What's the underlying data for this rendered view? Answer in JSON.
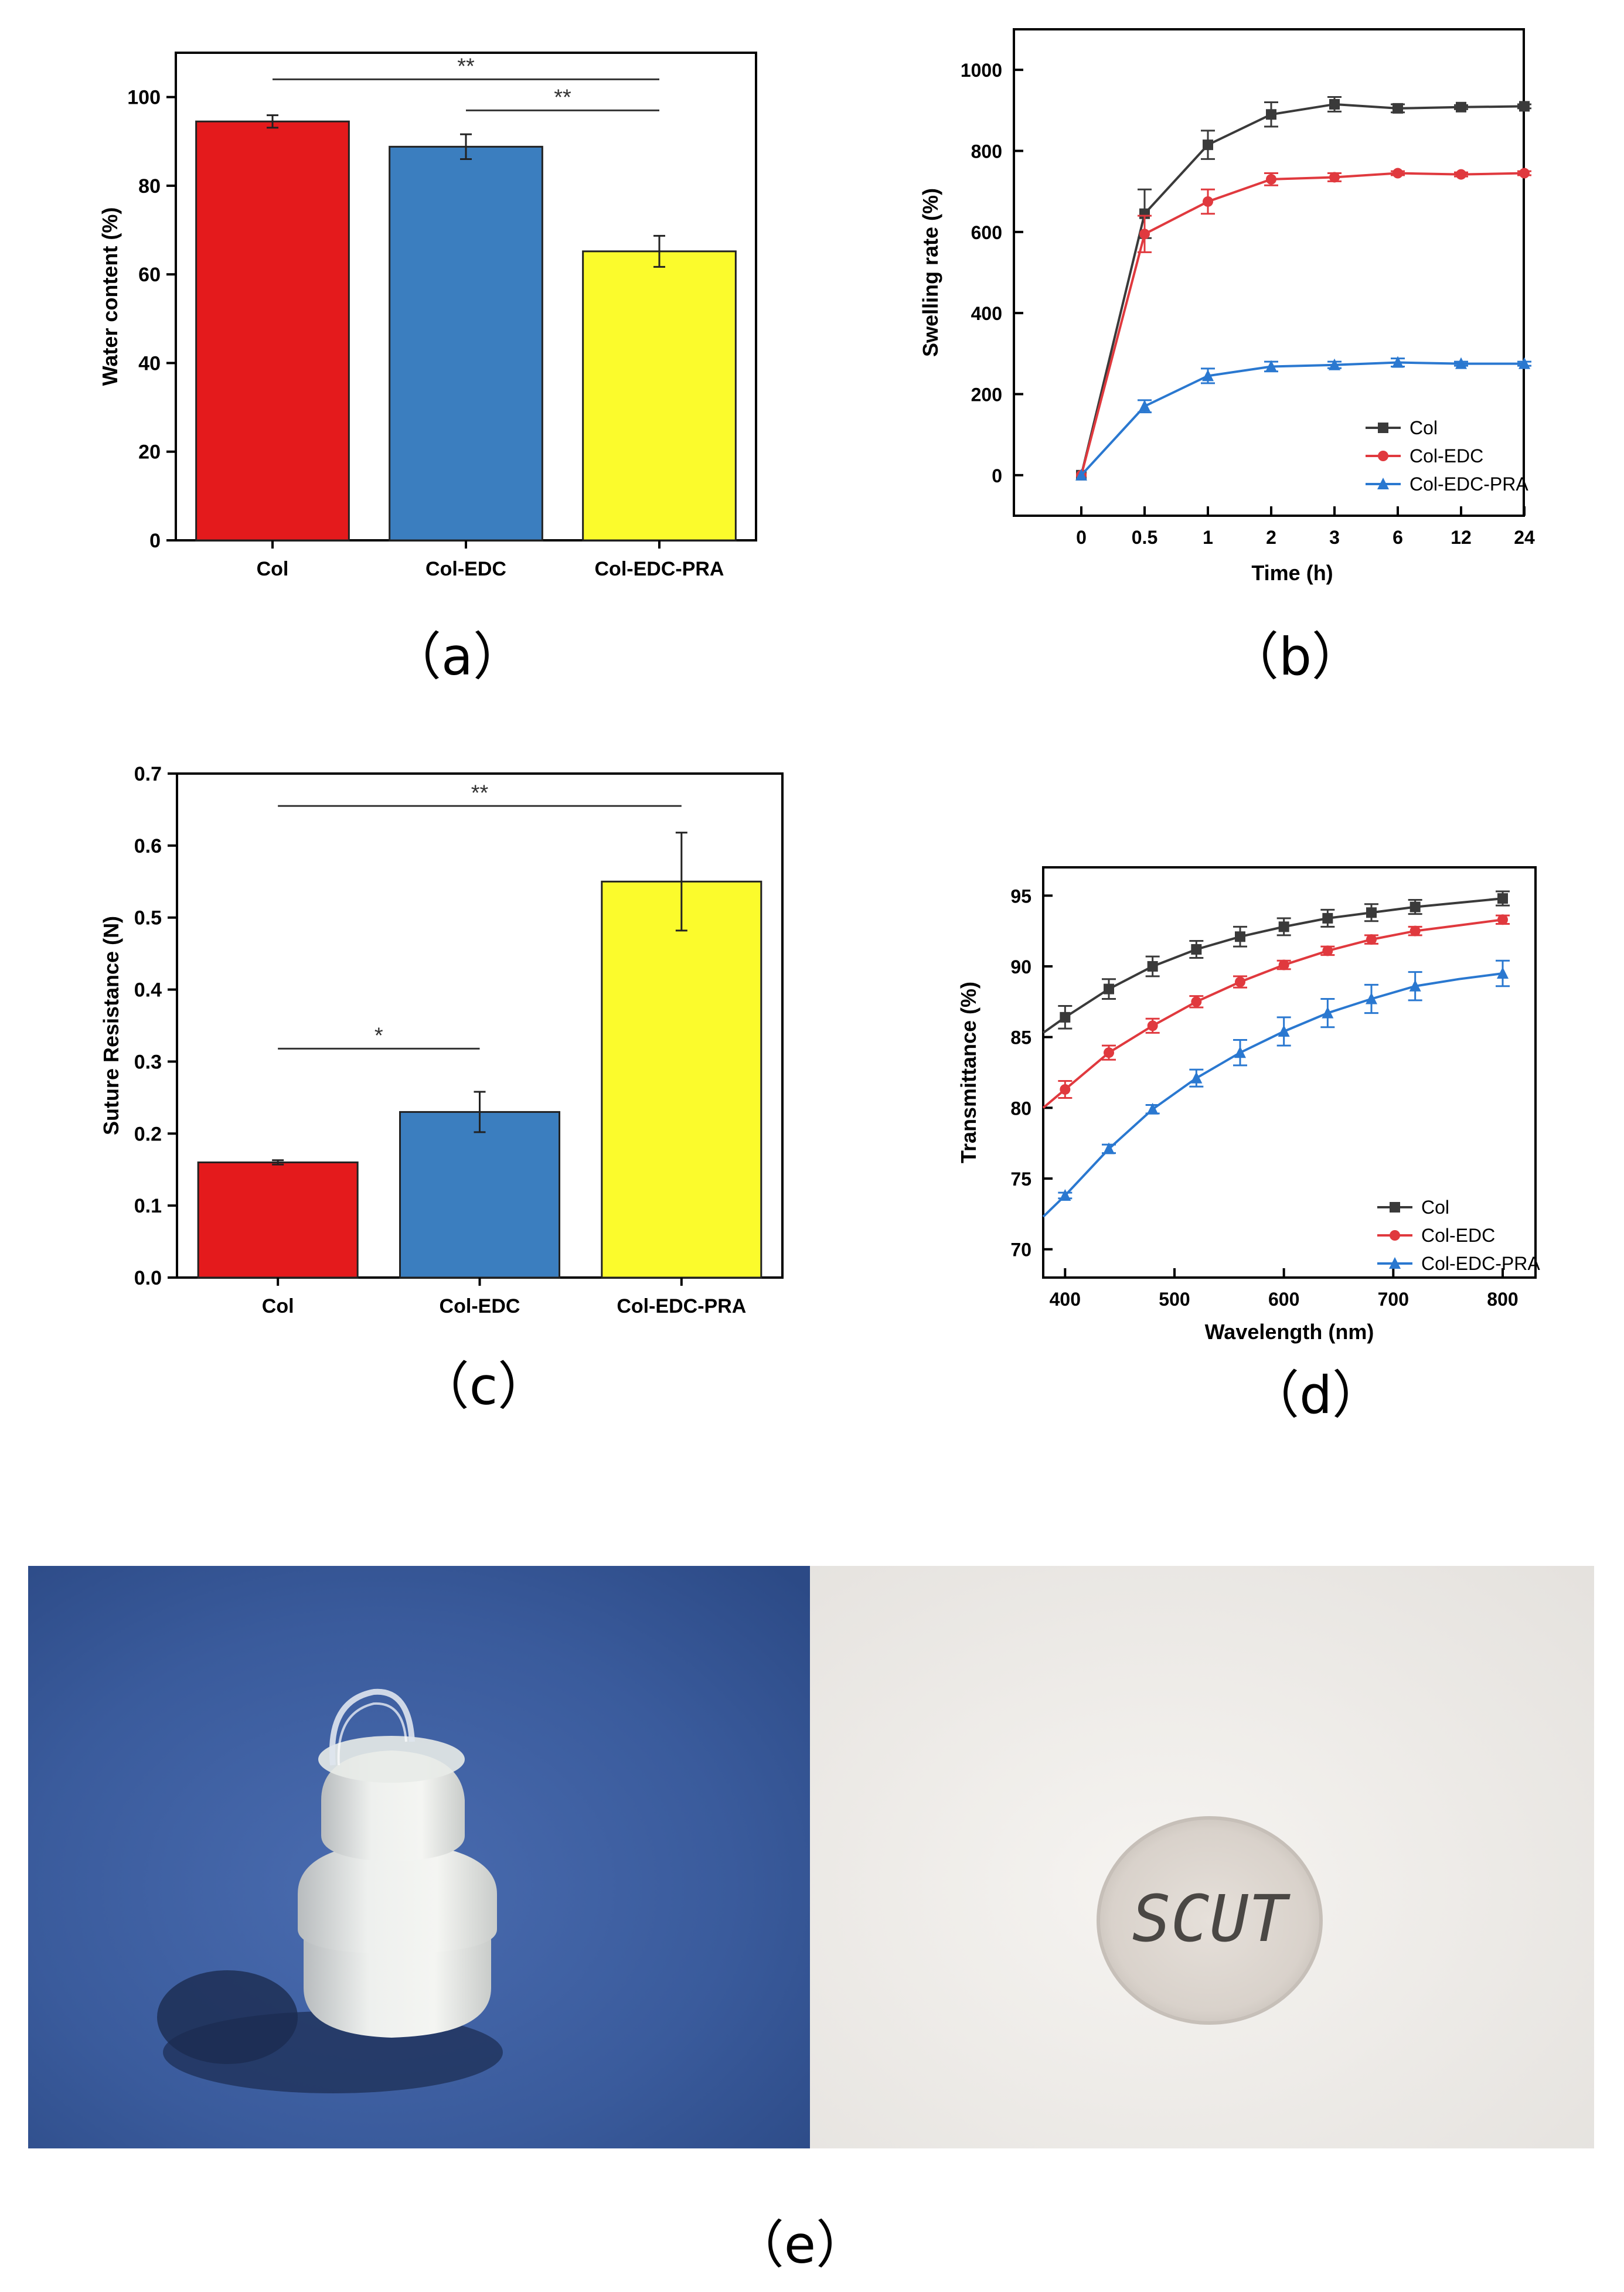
{
  "panels": {
    "a": {
      "label": "（a）",
      "chart_data": {
        "type": "bar",
        "categories": [
          "Col",
          "Col-EDC",
          "Col-EDC-PRA"
        ],
        "values": [
          94.5,
          88.8,
          65.2
        ],
        "errors": [
          1.4,
          2.8,
          3.5
        ],
        "colors": [
          "#e41a1c",
          "#3b7ebf",
          "#fbfb2c"
        ],
        "ylabel": "Water content (%)",
        "xlabel": "",
        "ylim": [
          0,
          110
        ],
        "yticks": [
          0,
          20,
          40,
          60,
          80,
          100
        ],
        "significance": [
          {
            "from": 0,
            "to": 2,
            "y": 104,
            "text": "**"
          },
          {
            "from": 1,
            "to": 2,
            "y": 97,
            "text": "**"
          }
        ]
      }
    },
    "b": {
      "label": "（b）",
      "chart_data": {
        "type": "line",
        "x": [
          "0",
          "0.5",
          "1",
          "2",
          "3",
          "6",
          "12",
          "24"
        ],
        "xlabel": "Time (h)",
        "ylabel": "Swelling rate (%)",
        "ylim": [
          -100,
          1100
        ],
        "yticks": [
          0,
          200,
          400,
          600,
          800,
          1000
        ],
        "legend_position": "bottom-right",
        "series": [
          {
            "name": "Col",
            "color": "#3a3a3a",
            "marker": "square",
            "values": [
              0,
              645,
              815,
              890,
              915,
              905,
              908,
              910
            ],
            "errors": [
              0,
              60,
              35,
              30,
              18,
              10,
              5,
              5
            ]
          },
          {
            "name": "Col-EDC",
            "color": "#e0393e",
            "marker": "circle",
            "values": [
              0,
              595,
              675,
              730,
              735,
              745,
              742,
              745
            ],
            "errors": [
              0,
              45,
              30,
              15,
              10,
              5,
              5,
              5
            ]
          },
          {
            "name": "Col-EDC-PRA",
            "color": "#2a78d0",
            "marker": "triangle",
            "values": [
              0,
              170,
              245,
              268,
              272,
              278,
              275,
              275
            ],
            "errors": [
              0,
              15,
              18,
              12,
              8,
              10,
              5,
              5
            ]
          }
        ]
      }
    },
    "c": {
      "label": "（c）",
      "chart_data": {
        "type": "bar",
        "categories": [
          "Col",
          "Col-EDC",
          "Col-EDC-PRA"
        ],
        "values": [
          0.16,
          0.23,
          0.55
        ],
        "errors": [
          0.003,
          0.028,
          0.068
        ],
        "colors": [
          "#e41a1c",
          "#3b7ebf",
          "#fbfb2c"
        ],
        "ylabel": "Suture Resistance (N)",
        "xlabel": "",
        "ylim": [
          0,
          0.7
        ],
        "yticks": [
          "0.0",
          "0.1",
          "0.2",
          "0.3",
          "0.4",
          "0.5",
          "0.6",
          "0.7"
        ],
        "significance": [
          {
            "from": 0,
            "to": 2,
            "y": 0.655,
            "text": "**"
          },
          {
            "from": 0,
            "to": 1,
            "y": 0.318,
            "text": "*"
          }
        ]
      }
    },
    "d": {
      "label": "（d）",
      "chart_data": {
        "type": "line",
        "x": [
          380,
          400,
          440,
          480,
          520,
          560,
          600,
          640,
          680,
          720,
          760,
          800
        ],
        "xlabel": "Wavelength (nm)",
        "ylabel": "Transmittance (%)",
        "xlim": [
          380,
          830
        ],
        "ylim": [
          68,
          97
        ],
        "xticks": [
          400,
          500,
          600,
          700,
          800
        ],
        "yticks": [
          70,
          75,
          80,
          85,
          90,
          95
        ],
        "legend_position": "bottom-right",
        "series": [
          {
            "name": "Col",
            "color": "#3a3a3a",
            "marker": "square",
            "values": [
              85.3,
              86.4,
              88.4,
              90.0,
              91.2,
              92.1,
              92.8,
              93.4,
              93.8,
              94.2,
              94.5,
              94.8
            ],
            "errors": [
              0,
              0.8,
              0.7,
              0.7,
              0.6,
              0.7,
              0.6,
              0.6,
              0.6,
              0.5,
              0,
              0.5
            ]
          },
          {
            "name": "Col-EDC",
            "color": "#e0393e",
            "marker": "circle",
            "values": [
              80.0,
              81.3,
              83.9,
              85.8,
              87.5,
              88.9,
              90.1,
              91.1,
              91.9,
              92.5,
              92.9,
              93.3
            ],
            "errors": [
              0,
              0.6,
              0.5,
              0.5,
              0.4,
              0.4,
              0.3,
              0.3,
              0.3,
              0.3,
              0,
              0.3
            ]
          },
          {
            "name": "Col-EDC-PRA",
            "color": "#2a78d0",
            "marker": "triangle",
            "values": [
              72.3,
              73.8,
              77.1,
              79.9,
              82.1,
              83.9,
              85.4,
              86.7,
              87.7,
              88.6,
              89.1,
              89.5
            ],
            "errors": [
              0,
              0.2,
              0.3,
              0.3,
              0.6,
              0.9,
              1.0,
              1.0,
              1.0,
              1.0,
              0,
              0.9
            ]
          }
        ]
      }
    },
    "e": {
      "label": "（e）",
      "photo_right_handwriting": "SCUT"
    }
  },
  "colors": {
    "blue_background": "#3a5a9a",
    "white_background": "#f1efed"
  }
}
